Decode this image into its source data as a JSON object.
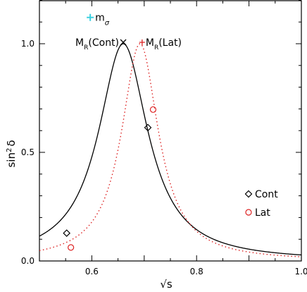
{
  "chart_data": {
    "type": "line",
    "xlabel_main": "√s",
    "ylabel_main": "sin",
    "ylabel_sup": "2",
    "ylabel_tail": "δ",
    "xlim": [
      0.5,
      1.0
    ],
    "ylim": [
      0.0,
      1.2
    ],
    "x_ticks": [
      0.6,
      0.8,
      1.0
    ],
    "x_tick_labels": [
      "0.6",
      "0.8",
      "1.0"
    ],
    "y_ticks": [
      0.0,
      0.5,
      1.0
    ],
    "y_tick_labels": [
      "0.0",
      "0.5",
      "1.0"
    ],
    "series": [
      {
        "name": "Cont",
        "style": "solid",
        "color": "#000000",
        "resonance_mass": 0.66,
        "width": 0.115
      },
      {
        "name": "Lat",
        "style": "dotted",
        "color": "#dd2222",
        "resonance_mass": 0.692,
        "width": 0.086
      }
    ],
    "points": {
      "Cont": [
        {
          "x": 0.552,
          "y": 0.128
        },
        {
          "x": 0.707,
          "y": 0.614
        }
      ],
      "Lat": [
        {
          "x": 0.56,
          "y": 0.062
        },
        {
          "x": 0.717,
          "y": 0.697
        }
      ]
    },
    "annotations": {
      "m_sigma": {
        "label_main": "m",
        "label_sub": "σ",
        "x": 0.597,
        "y": 1.121,
        "color": "#3ad0e0"
      },
      "mr_cont": {
        "label": "M",
        "label_sub": "R",
        "label_tail": "(Cont)",
        "x": 0.66,
        "y": 1.026,
        "marker": "×"
      },
      "mr_lat": {
        "label": "M",
        "label_sub": "R",
        "label_tail": "(Lat)",
        "x": 0.692,
        "y": 1.026,
        "marker": "+",
        "color": "#dd2222"
      }
    },
    "legend": {
      "position": "lower-right",
      "entries": [
        {
          "label": "Cont",
          "marker": "diamond",
          "color": "#000000"
        },
        {
          "label": "Lat",
          "marker": "circle",
          "color": "#dd2222"
        }
      ]
    }
  }
}
